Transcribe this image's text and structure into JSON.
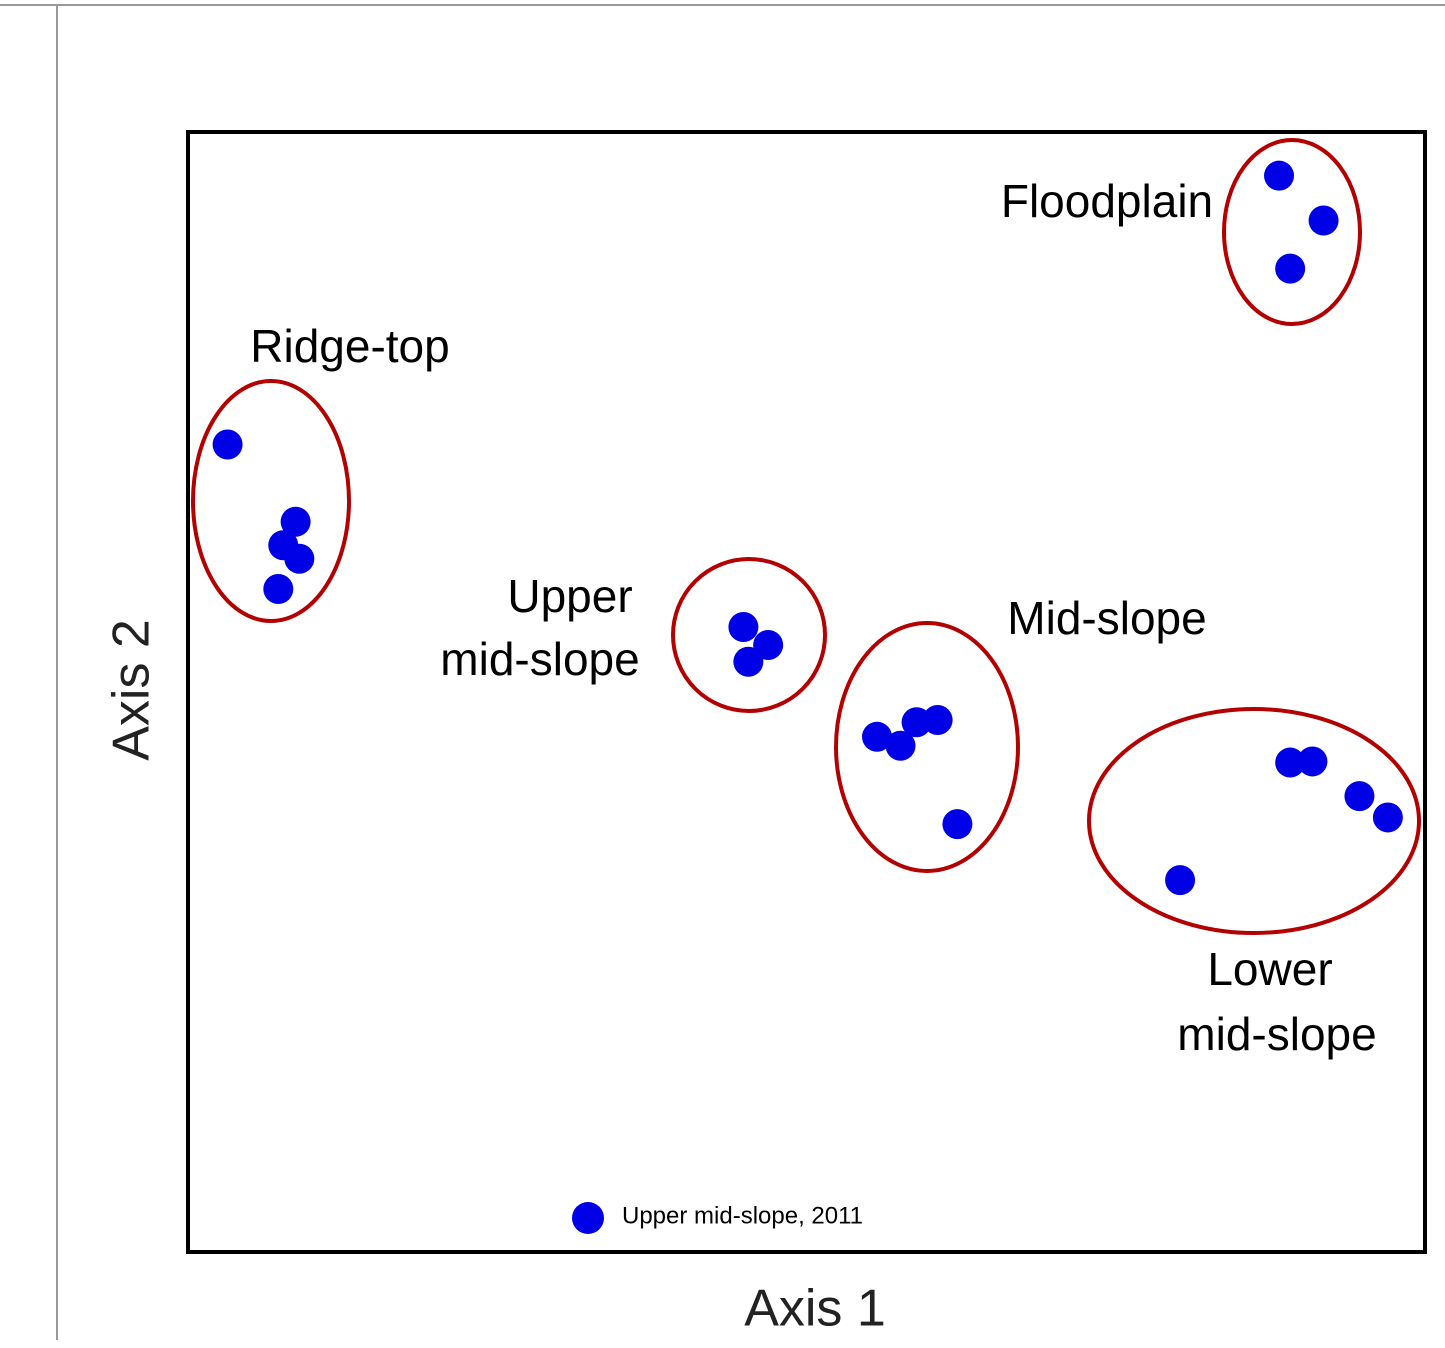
{
  "chart_data": {
    "type": "scatter",
    "xlabel": "Axis 1",
    "ylabel": "Axis 2",
    "xlim": [
      0,
      100
    ],
    "ylim": [
      0,
      100
    ],
    "legend": "bottom",
    "series": [
      {
        "name": "Upper mid-slope, 2011",
        "color": "#0000e6",
        "x": [
          88.2,
          91.8,
          89.1,
          3.2,
          8.7,
          7.7,
          9.0,
          7.3,
          44.9,
          46.9,
          45.3,
          55.7,
          57.6,
          58.9,
          60.6,
          62.2,
          89.1,
          90.9,
          94.7,
          97.0,
          80.2
        ],
        "values": [
          96.1,
          92.1,
          87.8,
          72.1,
          65.2,
          63.1,
          61.9,
          59.2,
          55.8,
          54.2,
          52.7,
          46.0,
          45.2,
          47.3,
          47.5,
          38.2,
          43.7,
          43.8,
          40.7,
          38.8,
          33.2
        ]
      }
    ],
    "annotations": [
      [
        "Floodplain"
      ],
      [
        "Ridge-top"
      ],
      [
        "Upper",
        "mid-slope"
      ],
      [
        "Mid-slope"
      ],
      [
        "Lower",
        "mid-slope"
      ]
    ]
  }
}
